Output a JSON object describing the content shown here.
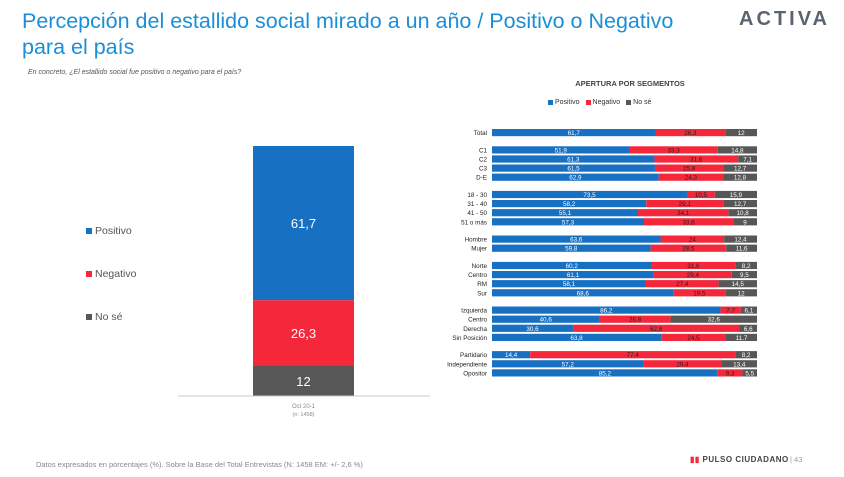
{
  "header": {
    "title": "Percepción del estallido social mirado a un año / Positivo o Negativo para el país",
    "brand": "ACTIVA",
    "question": "En concreto, ¿El estallido social fue positivo o negativo para el país?"
  },
  "footer": {
    "note": "Datos expresados en porcentajes (%). Sobre la Base del Total Entrevistas (N: 1458  EM: +/- 2,6 %)",
    "brand": "PULSO CIUDADANO",
    "page": "43"
  },
  "colors": {
    "positivo": "#1770c2",
    "negativo": "#f5283b",
    "nose": "#575757"
  },
  "chart_data": [
    {
      "type": "bar",
      "stacked": true,
      "categories": [
        "Oct 20-1"
      ],
      "sub_label": "(n: 1458)",
      "series": [
        {
          "name": "Positivo",
          "values": [
            61.7
          ]
        },
        {
          "name": "Negativo",
          "values": [
            26.3
          ]
        },
        {
          "name": "No sé",
          "values": [
            12
          ]
        }
      ]
    },
    {
      "type": "bar",
      "orientation": "horizontal",
      "stacked": true,
      "title": "APERTURA POR SEGMENTOS",
      "legend_position": "top",
      "groups": [
        {
          "rows": [
            {
              "label": "Total",
              "values": [
                "61,7",
                "26,3",
                "12"
              ]
            }
          ]
        },
        {
          "rows": [
            {
              "label": "C1",
              "values": [
                "51,9",
                "33,3",
                "14,8"
              ]
            },
            {
              "label": "C2",
              "values": [
                "61,3",
                "31,6",
                "7,1"
              ]
            },
            {
              "label": "C3",
              "values": [
                "61,5",
                "25,8",
                "12,7"
              ]
            },
            {
              "label": "D-E",
              "values": [
                "62,9",
                "24,3",
                "12,8"
              ]
            }
          ]
        },
        {
          "rows": [
            {
              "label": "18 - 30",
              "values": [
                "73,5",
                "10,5",
                "15,9"
              ]
            },
            {
              "label": "31 - 40",
              "values": [
                "58,2",
                "29,1",
                "12,7"
              ]
            },
            {
              "label": "41 - 50",
              "values": [
                "55,1",
                "34,1",
                "10,8"
              ]
            },
            {
              "label": "51 o más",
              "values": [
                "57,3",
                "33,6",
                "9"
              ]
            }
          ]
        },
        {
          "rows": [
            {
              "label": "Hombre",
              "values": [
                "63,6",
                "24",
                "12,4"
              ]
            },
            {
              "label": "Mujer",
              "values": [
                "59,8",
                "28,5",
                "11,6"
              ]
            }
          ]
        },
        {
          "rows": [
            {
              "label": "Norte",
              "values": [
                "60,2",
                "31,6",
                "8,2"
              ]
            },
            {
              "label": "Centro",
              "values": [
                "61,1",
                "29,4",
                "9,5"
              ]
            },
            {
              "label": "RM",
              "values": [
                "58,1",
                "27,4",
                "14,5"
              ]
            },
            {
              "label": "Sur",
              "values": [
                "68,6",
                "19,5",
                "12"
              ]
            }
          ]
        },
        {
          "rows": [
            {
              "label": "Izquierda",
              "values": [
                "86,2",
                "7,7",
                "6,1"
              ]
            },
            {
              "label": "Centro",
              "values": [
                "40,6",
                "26,8",
                "32,6"
              ]
            },
            {
              "label": "Derecha",
              "values": [
                "30,6",
                "62,8",
                "6,6"
              ]
            },
            {
              "label": "Sin Posición",
              "values": [
                "63,8",
                "24,5",
                "11,7"
              ]
            }
          ]
        },
        {
          "rows": [
            {
              "label": "Partidario",
              "values": [
                "14,4",
                "77,4",
                "8,2"
              ]
            },
            {
              "label": "Independiente",
              "values": [
                "57,2",
                "29,4",
                "13,4"
              ]
            },
            {
              "label": "Opositor",
              "values": [
                "85,2",
                "9,3",
                "5,5"
              ]
            }
          ]
        }
      ]
    }
  ]
}
